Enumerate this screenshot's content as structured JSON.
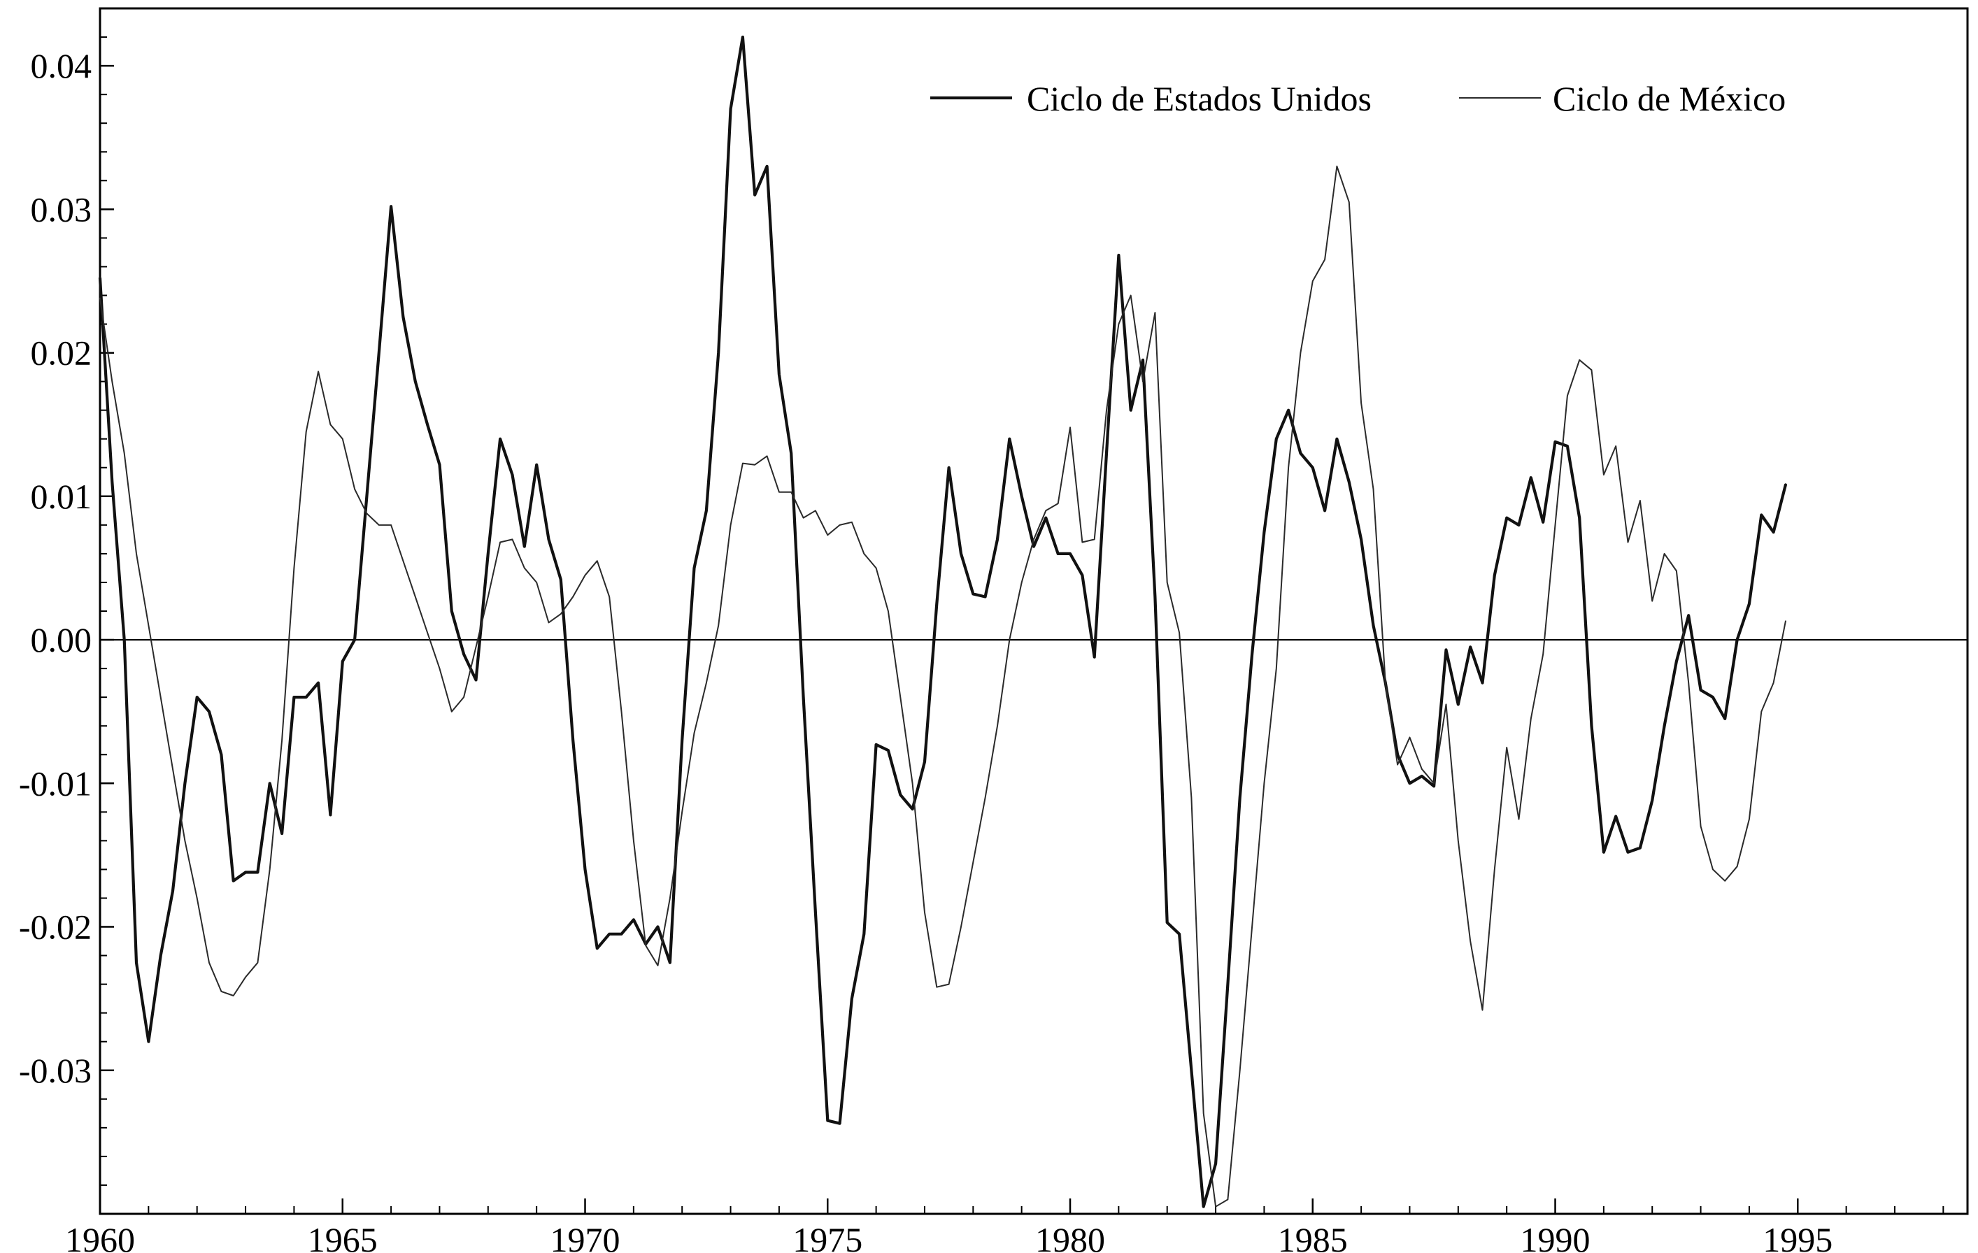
{
  "chart_data": {
    "type": "line",
    "title": "",
    "xlabel": "",
    "ylabel": "",
    "xlim": [
      1960,
      1998.5
    ],
    "ylim": [
      -0.04,
      0.044
    ],
    "x_ticks": [
      1960,
      1965,
      1970,
      1975,
      1980,
      1985,
      1990,
      1995
    ],
    "x_tick_labels": [
      "1960",
      "1965",
      "1970",
      "1975",
      "1980",
      "1985",
      "1990",
      "1995"
    ],
    "y_ticks": [
      0.04,
      0.03,
      0.02,
      0.01,
      0.0,
      -0.01,
      -0.02,
      -0.03
    ],
    "y_tick_labels": [
      "0.04",
      "0.03",
      "0.02",
      "0.01",
      "0.00",
      "-0.01",
      "-0.02",
      "-0.03"
    ],
    "grid": false,
    "zero_line": true,
    "legend": {
      "position": "top-right",
      "frame": false
    },
    "series": [
      {
        "name": "Ciclo de Estados Unidos",
        "color": "#111111",
        "style": "thick",
        "points": [
          [
            1960.0,
            0.0252
          ],
          [
            1960.25,
            0.011
          ],
          [
            1960.5,
            0.0
          ],
          [
            1960.75,
            -0.0225
          ],
          [
            1961.0,
            -0.028
          ],
          [
            1961.25,
            -0.022
          ],
          [
            1961.5,
            -0.0175
          ],
          [
            1961.75,
            -0.01
          ],
          [
            1962.0,
            -0.004
          ],
          [
            1962.25,
            -0.005
          ],
          [
            1962.5,
            -0.008
          ],
          [
            1962.75,
            -0.0168
          ],
          [
            1963.0,
            -0.0162
          ],
          [
            1963.25,
            -0.0162
          ],
          [
            1963.5,
            -0.01
          ],
          [
            1963.75,
            -0.0135
          ],
          [
            1964.0,
            -0.004
          ],
          [
            1964.25,
            -0.004
          ],
          [
            1964.5,
            -0.003
          ],
          [
            1964.75,
            -0.0122
          ],
          [
            1965.0,
            -0.0015
          ],
          [
            1965.25,
            0.0
          ],
          [
            1965.5,
            0.01
          ],
          [
            1965.75,
            0.02
          ],
          [
            1966.0,
            0.0302
          ],
          [
            1966.25,
            0.0225
          ],
          [
            1966.5,
            0.018
          ],
          [
            1966.75,
            0.015
          ],
          [
            1967.0,
            0.0122
          ],
          [
            1967.25,
            0.002
          ],
          [
            1967.5,
            -0.001
          ],
          [
            1967.75,
            -0.0028
          ],
          [
            1968.0,
            0.006
          ],
          [
            1968.25,
            0.014
          ],
          [
            1968.5,
            0.0115
          ],
          [
            1968.75,
            0.0065
          ],
          [
            1969.0,
            0.0122
          ],
          [
            1969.25,
            0.007
          ],
          [
            1969.5,
            0.0042
          ],
          [
            1969.75,
            -0.007
          ],
          [
            1970.0,
            -0.016
          ],
          [
            1970.25,
            -0.0215
          ],
          [
            1970.5,
            -0.0205
          ],
          [
            1970.75,
            -0.0205
          ],
          [
            1971.0,
            -0.0195
          ],
          [
            1971.25,
            -0.0212
          ],
          [
            1971.5,
            -0.02
          ],
          [
            1971.75,
            -0.0225
          ],
          [
            1972.0,
            -0.007
          ],
          [
            1972.25,
            0.005
          ],
          [
            1972.5,
            0.009
          ],
          [
            1972.75,
            0.02
          ],
          [
            1973.0,
            0.037
          ],
          [
            1973.25,
            0.042
          ],
          [
            1973.5,
            0.031
          ],
          [
            1973.75,
            0.033
          ],
          [
            1974.0,
            0.0185
          ],
          [
            1974.25,
            0.013
          ],
          [
            1974.5,
            -0.004
          ],
          [
            1974.75,
            -0.019
          ],
          [
            1975.0,
            -0.0335
          ],
          [
            1975.25,
            -0.0337
          ],
          [
            1975.5,
            -0.025
          ],
          [
            1975.75,
            -0.0205
          ],
          [
            1976.0,
            -0.0073
          ],
          [
            1976.25,
            -0.0077
          ],
          [
            1976.5,
            -0.0108
          ],
          [
            1976.75,
            -0.0118
          ],
          [
            1977.0,
            -0.0085
          ],
          [
            1977.25,
            0.0025
          ],
          [
            1977.5,
            0.012
          ],
          [
            1977.75,
            0.006
          ],
          [
            1978.0,
            0.0032
          ],
          [
            1978.25,
            0.003
          ],
          [
            1978.5,
            0.007
          ],
          [
            1978.75,
            0.014
          ],
          [
            1979.0,
            0.01
          ],
          [
            1979.25,
            0.0065
          ],
          [
            1979.5,
            0.0085
          ],
          [
            1979.75,
            0.006
          ],
          [
            1980.0,
            0.006
          ],
          [
            1980.25,
            0.0045
          ],
          [
            1980.5,
            -0.0012
          ],
          [
            1980.75,
            0.013
          ],
          [
            1981.0,
            0.0268
          ],
          [
            1981.25,
            0.016
          ],
          [
            1981.5,
            0.0195
          ],
          [
            1981.75,
            0.003
          ],
          [
            1982.0,
            -0.0197
          ],
          [
            1982.25,
            -0.0205
          ],
          [
            1982.5,
            -0.03
          ],
          [
            1982.75,
            -0.0395
          ],
          [
            1983.0,
            -0.0365
          ],
          [
            1983.25,
            -0.024
          ],
          [
            1983.5,
            -0.011
          ],
          [
            1983.75,
            -0.001
          ],
          [
            1984.0,
            0.0075
          ],
          [
            1984.25,
            0.014
          ],
          [
            1984.5,
            0.016
          ],
          [
            1984.75,
            0.013
          ],
          [
            1985.0,
            0.012
          ],
          [
            1985.25,
            0.009
          ],
          [
            1985.5,
            0.014
          ],
          [
            1985.75,
            0.011
          ],
          [
            1986.0,
            0.007
          ],
          [
            1986.25,
            0.001
          ],
          [
            1986.5,
            -0.003
          ],
          [
            1986.75,
            -0.008
          ],
          [
            1987.0,
            -0.01
          ],
          [
            1987.25,
            -0.0095
          ],
          [
            1987.5,
            -0.0102
          ],
          [
            1987.75,
            -0.0007
          ],
          [
            1988.0,
            -0.0045
          ],
          [
            1988.25,
            -0.0005
          ],
          [
            1988.5,
            -0.003
          ],
          [
            1988.75,
            0.0045
          ],
          [
            1989.0,
            0.0085
          ],
          [
            1989.25,
            0.008
          ],
          [
            1989.5,
            0.0113
          ],
          [
            1989.75,
            0.0082
          ],
          [
            1990.0,
            0.0138
          ],
          [
            1990.25,
            0.0135
          ],
          [
            1990.5,
            0.0085
          ],
          [
            1990.75,
            -0.006
          ],
          [
            1991.0,
            -0.0148
          ],
          [
            1991.25,
            -0.0123
          ],
          [
            1991.5,
            -0.0148
          ],
          [
            1991.75,
            -0.0145
          ],
          [
            1992.0,
            -0.0112
          ],
          [
            1992.25,
            -0.006
          ],
          [
            1992.5,
            -0.0015
          ],
          [
            1992.75,
            0.0017
          ],
          [
            1993.0,
            -0.0035
          ],
          [
            1993.25,
            -0.004
          ],
          [
            1993.5,
            -0.0055
          ],
          [
            1993.75,
            0.0
          ],
          [
            1994.0,
            0.0025
          ],
          [
            1994.25,
            0.0087
          ],
          [
            1994.5,
            0.0075
          ],
          [
            1994.75,
            0.0108
          ]
        ]
      },
      {
        "name": "Ciclo de México",
        "color": "#2a2a2a",
        "style": "thin",
        "points": [
          [
            1960.0,
            0.0238
          ],
          [
            1960.25,
            0.018
          ],
          [
            1960.5,
            0.013
          ],
          [
            1960.75,
            0.006
          ],
          [
            1961.0,
            0.001
          ],
          [
            1961.25,
            -0.004
          ],
          [
            1961.5,
            -0.009
          ],
          [
            1961.75,
            -0.014
          ],
          [
            1962.0,
            -0.018
          ],
          [
            1962.25,
            -0.0225
          ],
          [
            1962.5,
            -0.0245
          ],
          [
            1962.75,
            -0.0248
          ],
          [
            1963.0,
            -0.0235
          ],
          [
            1963.25,
            -0.0225
          ],
          [
            1963.5,
            -0.016
          ],
          [
            1963.75,
            -0.007
          ],
          [
            1964.0,
            0.005
          ],
          [
            1964.25,
            0.0145
          ],
          [
            1964.5,
            0.0187
          ],
          [
            1964.75,
            0.015
          ],
          [
            1965.0,
            0.014
          ],
          [
            1965.25,
            0.0105
          ],
          [
            1965.5,
            0.0088
          ],
          [
            1965.75,
            0.008
          ],
          [
            1966.0,
            0.008
          ],
          [
            1966.25,
            0.0055
          ],
          [
            1966.5,
            0.003
          ],
          [
            1966.75,
            0.0005
          ],
          [
            1967.0,
            -0.002
          ],
          [
            1967.25,
            -0.005
          ],
          [
            1967.5,
            -0.004
          ],
          [
            1967.75,
            -0.0005
          ],
          [
            1968.0,
            0.003
          ],
          [
            1968.25,
            0.0068
          ],
          [
            1968.5,
            0.007
          ],
          [
            1968.75,
            0.005
          ],
          [
            1969.0,
            0.004
          ],
          [
            1969.25,
            0.0012
          ],
          [
            1969.5,
            0.0018
          ],
          [
            1969.75,
            0.003
          ],
          [
            1970.0,
            0.0045
          ],
          [
            1970.25,
            0.0055
          ],
          [
            1970.5,
            0.003
          ],
          [
            1970.75,
            -0.005
          ],
          [
            1971.0,
            -0.014
          ],
          [
            1971.25,
            -0.0213
          ],
          [
            1971.5,
            -0.0227
          ],
          [
            1971.75,
            -0.018
          ],
          [
            1972.0,
            -0.012
          ],
          [
            1972.25,
            -0.0065
          ],
          [
            1972.5,
            -0.003
          ],
          [
            1972.75,
            0.001
          ],
          [
            1973.0,
            0.008
          ],
          [
            1973.25,
            0.0123
          ],
          [
            1973.5,
            0.0122
          ],
          [
            1973.75,
            0.0128
          ],
          [
            1974.0,
            0.0103
          ],
          [
            1974.25,
            0.0103
          ],
          [
            1974.5,
            0.0085
          ],
          [
            1974.75,
            0.009
          ],
          [
            1975.0,
            0.0073
          ],
          [
            1975.25,
            0.008
          ],
          [
            1975.5,
            0.0082
          ],
          [
            1975.75,
            0.006
          ],
          [
            1976.0,
            0.005
          ],
          [
            1976.25,
            0.002
          ],
          [
            1976.5,
            -0.004
          ],
          [
            1976.75,
            -0.01
          ],
          [
            1977.0,
            -0.019
          ],
          [
            1977.25,
            -0.0242
          ],
          [
            1977.5,
            -0.024
          ],
          [
            1977.75,
            -0.02
          ],
          [
            1978.0,
            -0.0155
          ],
          [
            1978.25,
            -0.011
          ],
          [
            1978.5,
            -0.006
          ],
          [
            1978.75,
            0.0
          ],
          [
            1979.0,
            0.004
          ],
          [
            1979.25,
            0.007
          ],
          [
            1979.5,
            0.009
          ],
          [
            1979.75,
            0.0095
          ],
          [
            1980.0,
            0.0148
          ],
          [
            1980.25,
            0.0068
          ],
          [
            1980.5,
            0.007
          ],
          [
            1980.75,
            0.016
          ],
          [
            1981.0,
            0.022
          ],
          [
            1981.25,
            0.024
          ],
          [
            1981.5,
            0.018
          ],
          [
            1981.75,
            0.0228
          ],
          [
            1982.0,
            0.004
          ],
          [
            1982.25,
            0.0005
          ],
          [
            1982.5,
            -0.011
          ],
          [
            1982.75,
            -0.033
          ],
          [
            1983.0,
            -0.0395
          ],
          [
            1983.25,
            -0.039
          ],
          [
            1983.5,
            -0.03
          ],
          [
            1983.75,
            -0.02
          ],
          [
            1984.0,
            -0.01
          ],
          [
            1984.25,
            -0.002
          ],
          [
            1984.5,
            0.012
          ],
          [
            1984.75,
            0.02
          ],
          [
            1985.0,
            0.025
          ],
          [
            1985.25,
            0.0265
          ],
          [
            1985.5,
            0.033
          ],
          [
            1985.75,
            0.0305
          ],
          [
            1986.0,
            0.0165
          ],
          [
            1986.25,
            0.0105
          ],
          [
            1986.5,
            -0.003
          ],
          [
            1986.75,
            -0.0087
          ],
          [
            1987.0,
            -0.0068
          ],
          [
            1987.25,
            -0.009
          ],
          [
            1987.5,
            -0.01
          ],
          [
            1987.75,
            -0.0045
          ],
          [
            1988.0,
            -0.014
          ],
          [
            1988.25,
            -0.021
          ],
          [
            1988.5,
            -0.0258
          ],
          [
            1988.75,
            -0.016
          ],
          [
            1989.0,
            -0.0075
          ],
          [
            1989.25,
            -0.0125
          ],
          [
            1989.5,
            -0.0055
          ],
          [
            1989.75,
            -0.001
          ],
          [
            1990.0,
            0.008
          ],
          [
            1990.25,
            0.017
          ],
          [
            1990.5,
            0.0195
          ],
          [
            1990.75,
            0.0188
          ],
          [
            1991.0,
            0.0115
          ],
          [
            1991.25,
            0.0135
          ],
          [
            1991.5,
            0.0068
          ],
          [
            1991.75,
            0.0097
          ],
          [
            1992.0,
            0.0027
          ],
          [
            1992.25,
            0.006
          ],
          [
            1992.5,
            0.0048
          ],
          [
            1992.75,
            -0.003
          ],
          [
            1993.0,
            -0.013
          ],
          [
            1993.25,
            -0.016
          ],
          [
            1993.5,
            -0.0168
          ],
          [
            1993.75,
            -0.0158
          ],
          [
            1994.0,
            -0.0125
          ],
          [
            1994.25,
            -0.005
          ],
          [
            1994.5,
            -0.003
          ],
          [
            1994.75,
            0.0013
          ]
        ]
      }
    ]
  }
}
